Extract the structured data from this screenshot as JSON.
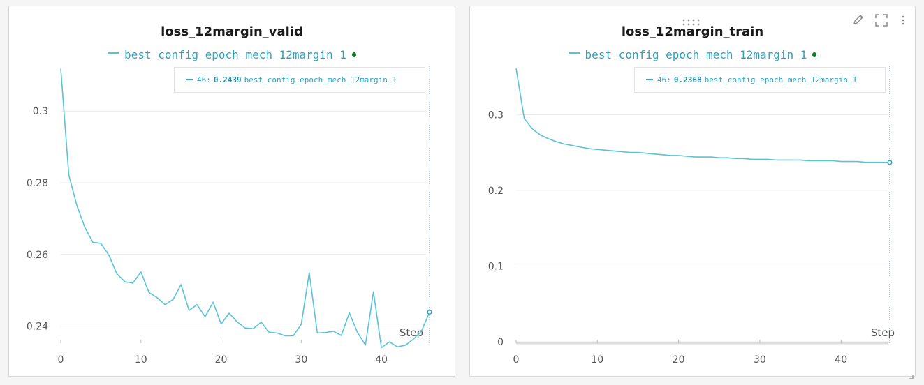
{
  "colors": {
    "series": "#5bc3d6",
    "series_text": "#2aa4bf",
    "status_dot": "#0d7a1f",
    "grid": "#e8e8e8",
    "axis_text": "#555555"
  },
  "panels": [
    {
      "title": "loss_12margin_valid",
      "legend_label": "best_config_epoch_mech_12margin_1",
      "tooltip": {
        "step": "46:",
        "value": "0.2439",
        "series": "best_config_epoch_mech_12margin_1"
      },
      "xaxis_label": "Step"
    },
    {
      "title": "loss_12margin_train",
      "legend_label": "best_config_epoch_mech_12margin_1",
      "tooltip": {
        "step": "46:",
        "value": "0.2368",
        "series": "best_config_epoch_mech_12margin_1"
      },
      "xaxis_label": "Step"
    }
  ],
  "toolbar": {
    "icons": [
      "edit-icon",
      "fullscreen-icon",
      "more-menu-icon",
      "drag-handle-icon",
      "resize-handle-icon"
    ]
  },
  "chart_data": [
    {
      "type": "line",
      "title": "loss_12margin_valid",
      "xlabel": "Step",
      "ylabel": "",
      "xlim": [
        0,
        46
      ],
      "ylim": [
        0.2335,
        0.3125
      ],
      "xticks": [
        0,
        10,
        20,
        30,
        40
      ],
      "yticks": [
        0.24,
        0.26,
        0.28,
        0.3
      ],
      "ytick_labels": [
        "0.24",
        "0.26",
        "0.28",
        "0.3"
      ],
      "grid": true,
      "hover_step": 46,
      "series": [
        {
          "name": "best_config_epoch_mech_12margin_1",
          "x": [
            0,
            1,
            2,
            3,
            4,
            5,
            6,
            7,
            8,
            9,
            10,
            11,
            12,
            13,
            14,
            15,
            16,
            17,
            18,
            19,
            20,
            21,
            22,
            23,
            24,
            25,
            26,
            27,
            28,
            29,
            30,
            31,
            32,
            33,
            34,
            35,
            36,
            37,
            38,
            39,
            40,
            41,
            42,
            43,
            44,
            45,
            46
          ],
          "y": [
            0.3118,
            0.2822,
            0.2737,
            0.2676,
            0.2634,
            0.2631,
            0.2598,
            0.2546,
            0.2524,
            0.252,
            0.2551,
            0.2494,
            0.248,
            0.246,
            0.2474,
            0.2516,
            0.2444,
            0.246,
            0.2426,
            0.2467,
            0.2406,
            0.2436,
            0.2412,
            0.2395,
            0.2393,
            0.2411,
            0.2383,
            0.2381,
            0.2373,
            0.2373,
            0.2405,
            0.2549,
            0.2381,
            0.2382,
            0.2386,
            0.2374,
            0.2437,
            0.2383,
            0.2347,
            0.2496,
            0.234,
            0.2356,
            0.2342,
            0.2347,
            0.2364,
            0.2386,
            0.2439
          ]
        }
      ]
    },
    {
      "type": "line",
      "title": "loss_12margin_train",
      "xlabel": "Step",
      "ylabel": "",
      "xlim": [
        0,
        46
      ],
      "ylim": [
        0,
        0.362
      ],
      "xticks": [
        0,
        10,
        20,
        30,
        40
      ],
      "yticks": [
        0,
        0.1,
        0.2,
        0.3
      ],
      "ytick_labels": [
        "0",
        "0.1",
        "0.2",
        "0.3"
      ],
      "grid": true,
      "hover_step": 46,
      "series": [
        {
          "name": "best_config_epoch_mech_12margin_1",
          "x": [
            0,
            1,
            2,
            3,
            4,
            5,
            6,
            7,
            8,
            9,
            10,
            11,
            12,
            13,
            14,
            15,
            16,
            17,
            18,
            19,
            20,
            21,
            22,
            23,
            24,
            25,
            26,
            27,
            28,
            29,
            30,
            31,
            32,
            33,
            34,
            35,
            36,
            37,
            38,
            39,
            40,
            41,
            42,
            43,
            44,
            45,
            46
          ],
          "y": [
            0.361,
            0.295,
            0.281,
            0.273,
            0.268,
            0.264,
            0.261,
            0.259,
            0.257,
            0.255,
            0.254,
            0.253,
            0.252,
            0.251,
            0.25,
            0.25,
            0.249,
            0.248,
            0.247,
            0.246,
            0.246,
            0.245,
            0.244,
            0.244,
            0.244,
            0.243,
            0.243,
            0.242,
            0.242,
            0.241,
            0.241,
            0.241,
            0.24,
            0.24,
            0.24,
            0.24,
            0.239,
            0.239,
            0.239,
            0.239,
            0.238,
            0.238,
            0.238,
            0.237,
            0.237,
            0.237,
            0.2368
          ]
        }
      ]
    }
  ]
}
